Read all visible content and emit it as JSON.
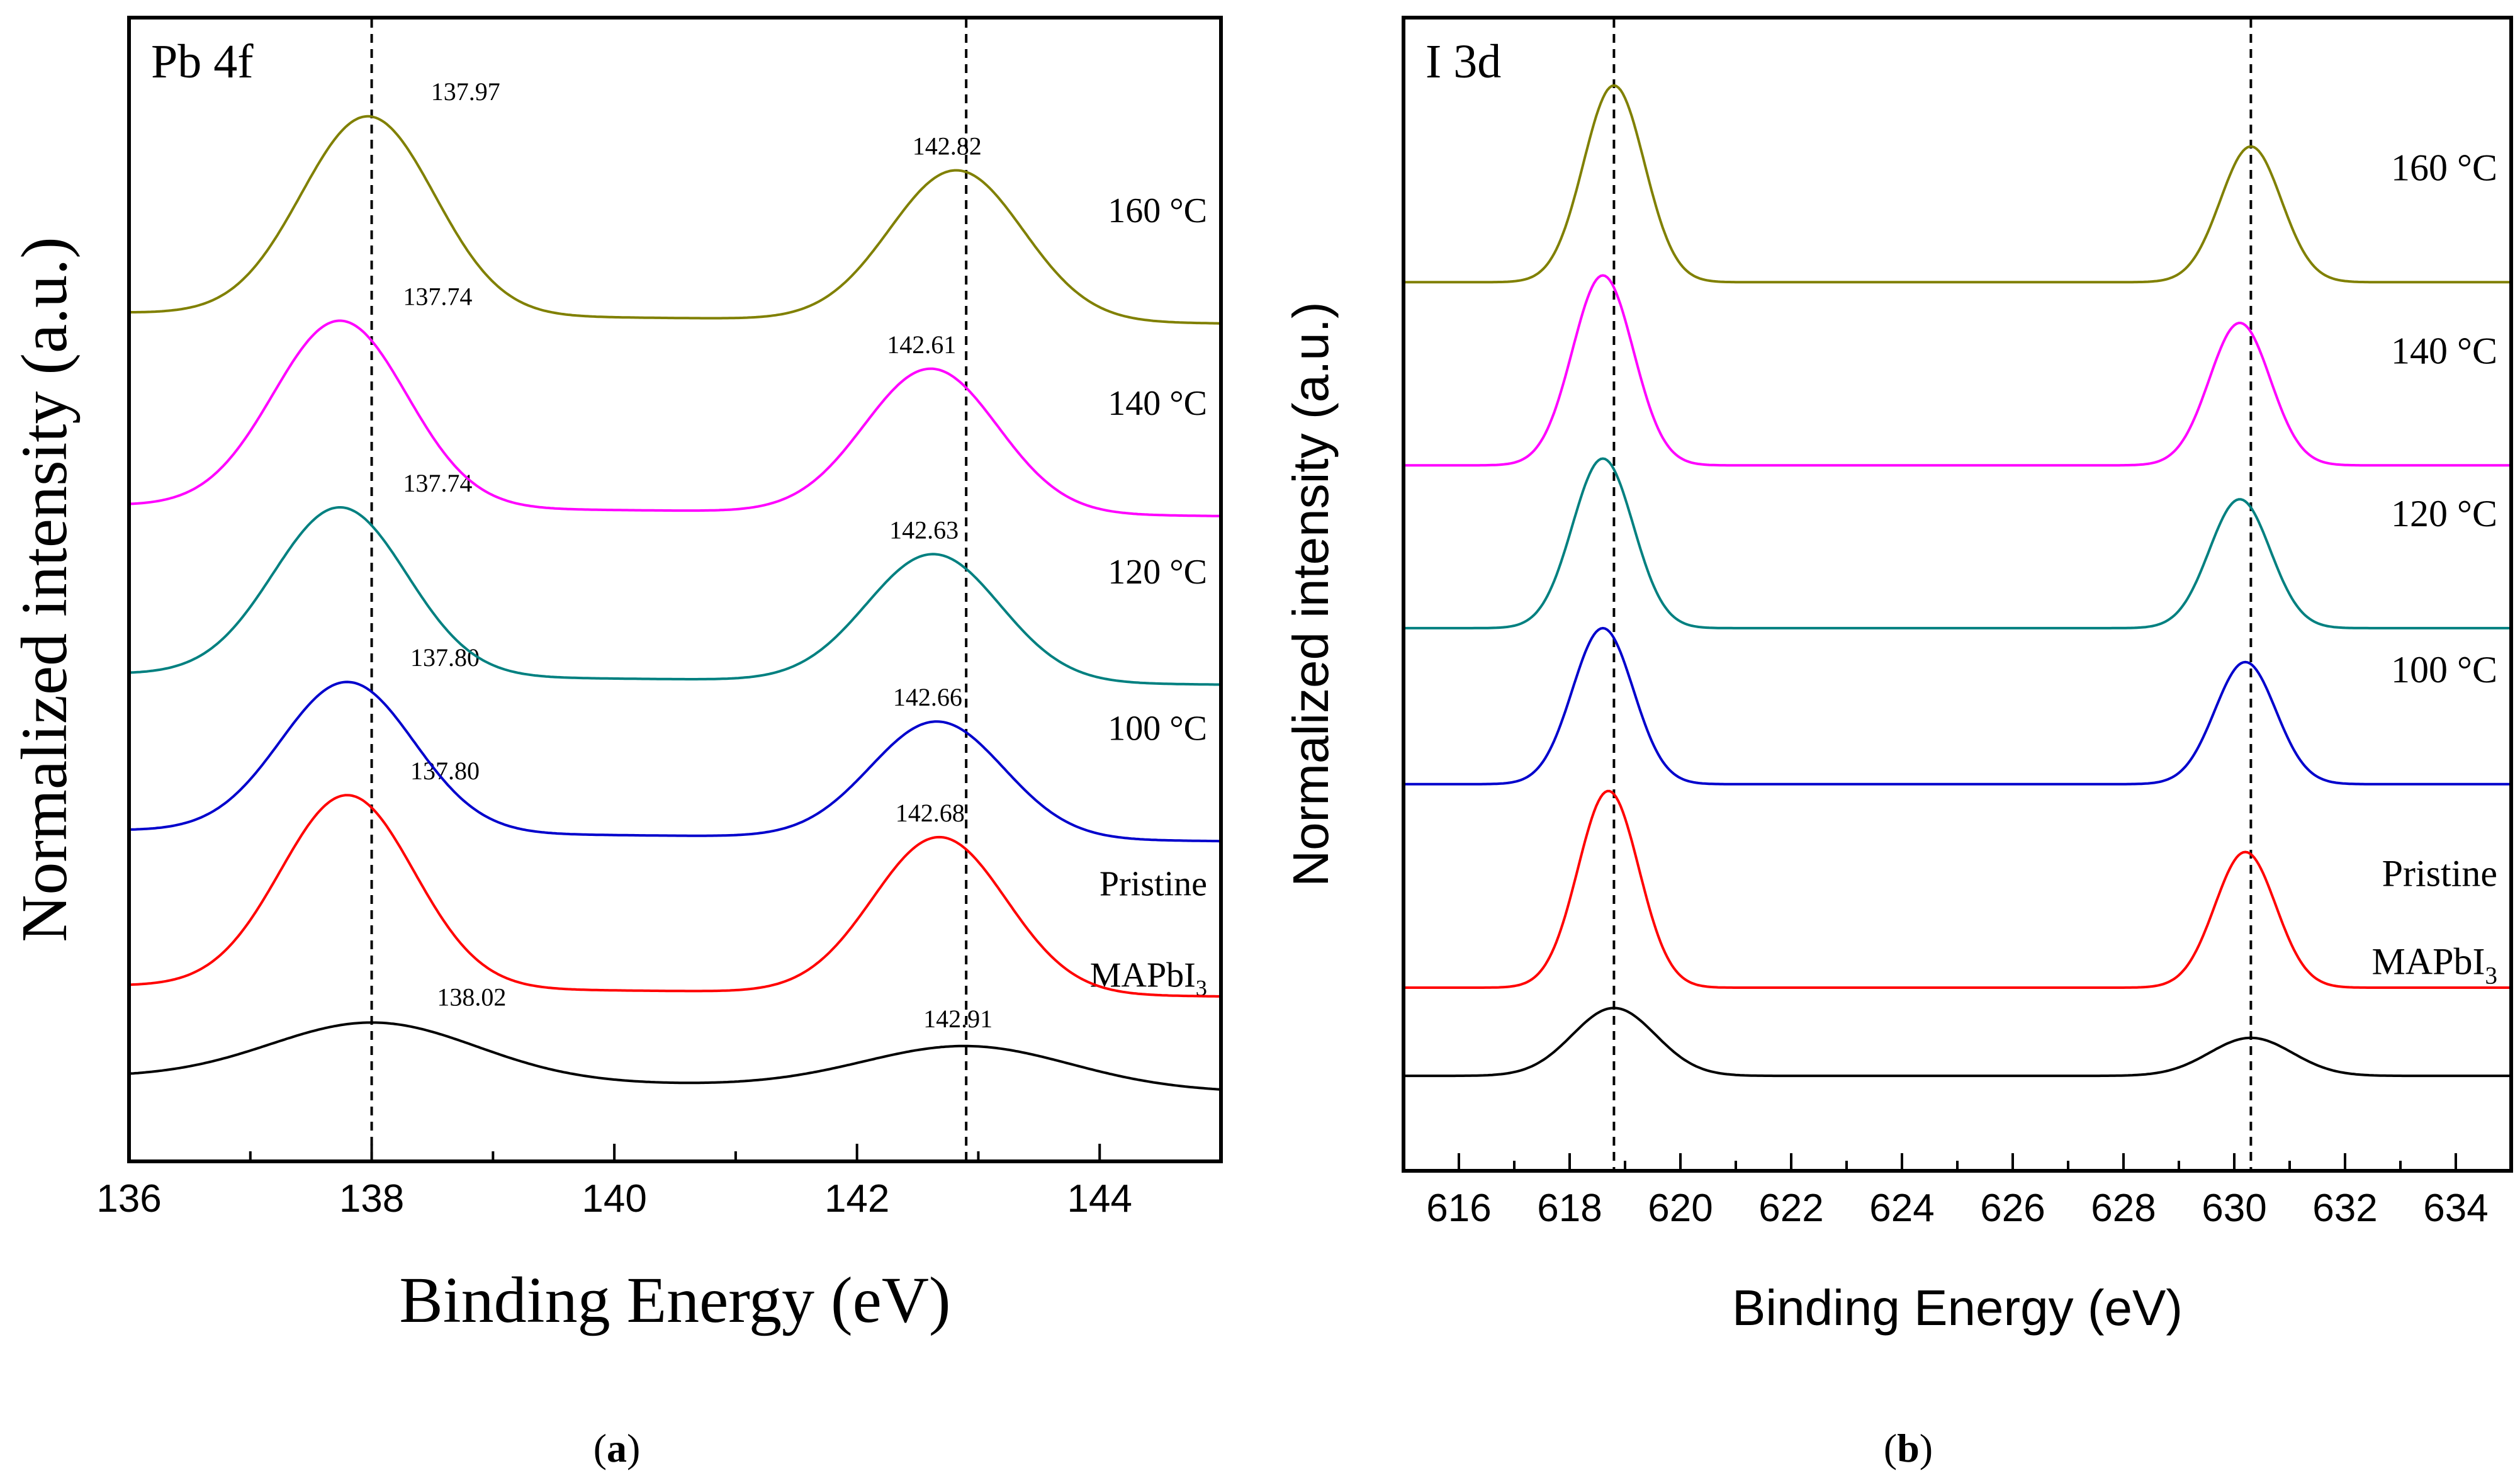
{
  "chart_data": [
    {
      "id": "a",
      "type": "line",
      "panel_tag": "Pb 4f",
      "caption_letter": "a",
      "xlabel": "Binding Energy (eV)",
      "ylabel": "Normalized intensity (a.u.)",
      "xlim": [
        136,
        145
      ],
      "x_ticks": [
        "136",
        "138",
        "140",
        "142",
        "144"
      ],
      "x_tick_values": [
        136,
        138,
        140,
        142,
        144
      ],
      "reference_lines": [
        138.0,
        142.9
      ],
      "series": [
        {
          "name": "MAPbI3",
          "label_main": "MAPbI",
          "label_sub": "3",
          "color": "#000000",
          "baseline": 0.0,
          "peak1": {
            "x": 138.02,
            "h": 0.48,
            "w": 0.85
          },
          "peak2": {
            "x": 142.91,
            "h": 0.35,
            "w": 0.85
          },
          "tilt": -0.04,
          "peak_labels": [
            "138.02",
            "142.91"
          ]
        },
        {
          "name": "Pristine",
          "label_main": "Pristine",
          "label_sub": "",
          "color": "#ff0000",
          "baseline": 0.76,
          "peak1": {
            "x": 137.8,
            "h": 1.6,
            "w": 0.55
          },
          "peak2": {
            "x": 142.68,
            "h": 1.3,
            "w": 0.55
          },
          "tilt": -0.03,
          "peak_labels": [
            "137.80",
            "142.68"
          ]
        },
        {
          "name": "100 °C",
          "label_main": "100 °C",
          "label_sub": "",
          "color": "#0000cc",
          "baseline": 2.05,
          "peak1": {
            "x": 137.8,
            "h": 1.25,
            "w": 0.55
          },
          "peak2": {
            "x": 142.66,
            "h": 0.97,
            "w": 0.55
          },
          "tilt": -0.03,
          "peak_labels": [
            "137.80",
            "142.66"
          ]
        },
        {
          "name": "120 °C",
          "label_main": "120 °C",
          "label_sub": "",
          "color": "#008080",
          "baseline": 3.35,
          "peak1": {
            "x": 137.74,
            "h": 1.4,
            "w": 0.55
          },
          "peak2": {
            "x": 142.63,
            "h": 1.06,
            "w": 0.55
          },
          "tilt": -0.03,
          "peak_labels": [
            "137.74",
            "142.63"
          ]
        },
        {
          "name": "140 °C",
          "label_main": "140 °C",
          "label_sub": "",
          "color": "#ff00ff",
          "baseline": 4.75,
          "peak1": {
            "x": 137.74,
            "h": 1.55,
            "w": 0.55
          },
          "peak2": {
            "x": 142.61,
            "h": 1.2,
            "w": 0.55
          },
          "tilt": -0.03,
          "peak_labels": [
            "137.74",
            "142.61"
          ]
        },
        {
          "name": "160 °C",
          "label_main": "160 °C",
          "label_sub": "",
          "color": "#808000",
          "baseline": 6.35,
          "peak1": {
            "x": 137.97,
            "h": 1.65,
            "w": 0.55
          },
          "peak2": {
            "x": 142.82,
            "h": 1.25,
            "w": 0.55
          },
          "tilt": -0.03,
          "peak_labels": [
            "137.97",
            "142.82"
          ]
        }
      ],
      "ylim": [
        -0.7,
        8.8
      ]
    },
    {
      "id": "b",
      "type": "line",
      "panel_tag": "I 3d",
      "caption_letter": "b",
      "xlabel": "Binding Energy (eV)",
      "ylabel": "Normalized intensity (a.u.)",
      "xlim": [
        615,
        635
      ],
      "x_ticks": [
        "616",
        "618",
        "620",
        "622",
        "624",
        "626",
        "628",
        "630",
        "632",
        "634"
      ],
      "x_tick_values": [
        616,
        618,
        620,
        622,
        624,
        626,
        628,
        630,
        632,
        634
      ],
      "reference_lines": [
        618.8,
        630.3
      ],
      "series": [
        {
          "name": "MAPbI3",
          "label_main": "MAPbI",
          "label_sub": "3",
          "color": "#000000",
          "baseline": 0.0,
          "peak1": {
            "x": 618.8,
            "h": 0.5,
            "w": 0.75
          },
          "peak2": {
            "x": 630.3,
            "h": 0.28,
            "w": 0.75
          },
          "tilt": 0.0,
          "peak_labels": []
        },
        {
          "name": "Pristine",
          "label_main": "Pristine",
          "label_sub": "",
          "color": "#ff0000",
          "baseline": 0.65,
          "peak1": {
            "x": 618.7,
            "h": 1.45,
            "w": 0.55
          },
          "peak2": {
            "x": 630.2,
            "h": 1.0,
            "w": 0.55
          },
          "tilt": 0.0,
          "peak_labels": []
        },
        {
          "name": "100 °C",
          "label_main": "100 °C",
          "label_sub": "",
          "color": "#0000cc",
          "baseline": 2.15,
          "peak1": {
            "x": 618.6,
            "h": 1.15,
            "w": 0.55
          },
          "peak2": {
            "x": 630.2,
            "h": 0.9,
            "w": 0.55
          },
          "tilt": 0.0,
          "peak_labels": []
        },
        {
          "name": "120 °C",
          "label_main": "120 °C",
          "label_sub": "",
          "color": "#008080",
          "baseline": 3.3,
          "peak1": {
            "x": 618.6,
            "h": 1.25,
            "w": 0.55
          },
          "peak2": {
            "x": 630.1,
            "h": 0.95,
            "w": 0.55
          },
          "tilt": 0.0,
          "peak_labels": []
        },
        {
          "name": "140 °C",
          "label_main": "140 °C",
          "label_sub": "",
          "color": "#ff00ff",
          "baseline": 4.5,
          "peak1": {
            "x": 618.6,
            "h": 1.4,
            "w": 0.55
          },
          "peak2": {
            "x": 630.1,
            "h": 1.05,
            "w": 0.55
          },
          "tilt": 0.0,
          "peak_labels": []
        },
        {
          "name": "160 °C",
          "label_main": "160 °C",
          "label_sub": "",
          "color": "#808000",
          "baseline": 5.85,
          "peak1": {
            "x": 618.8,
            "h": 1.45,
            "w": 0.55
          },
          "peak2": {
            "x": 630.3,
            "h": 1.0,
            "w": 0.55
          },
          "tilt": 0.0,
          "peak_labels": []
        }
      ],
      "ylim": [
        -0.7,
        7.8
      ]
    }
  ]
}
